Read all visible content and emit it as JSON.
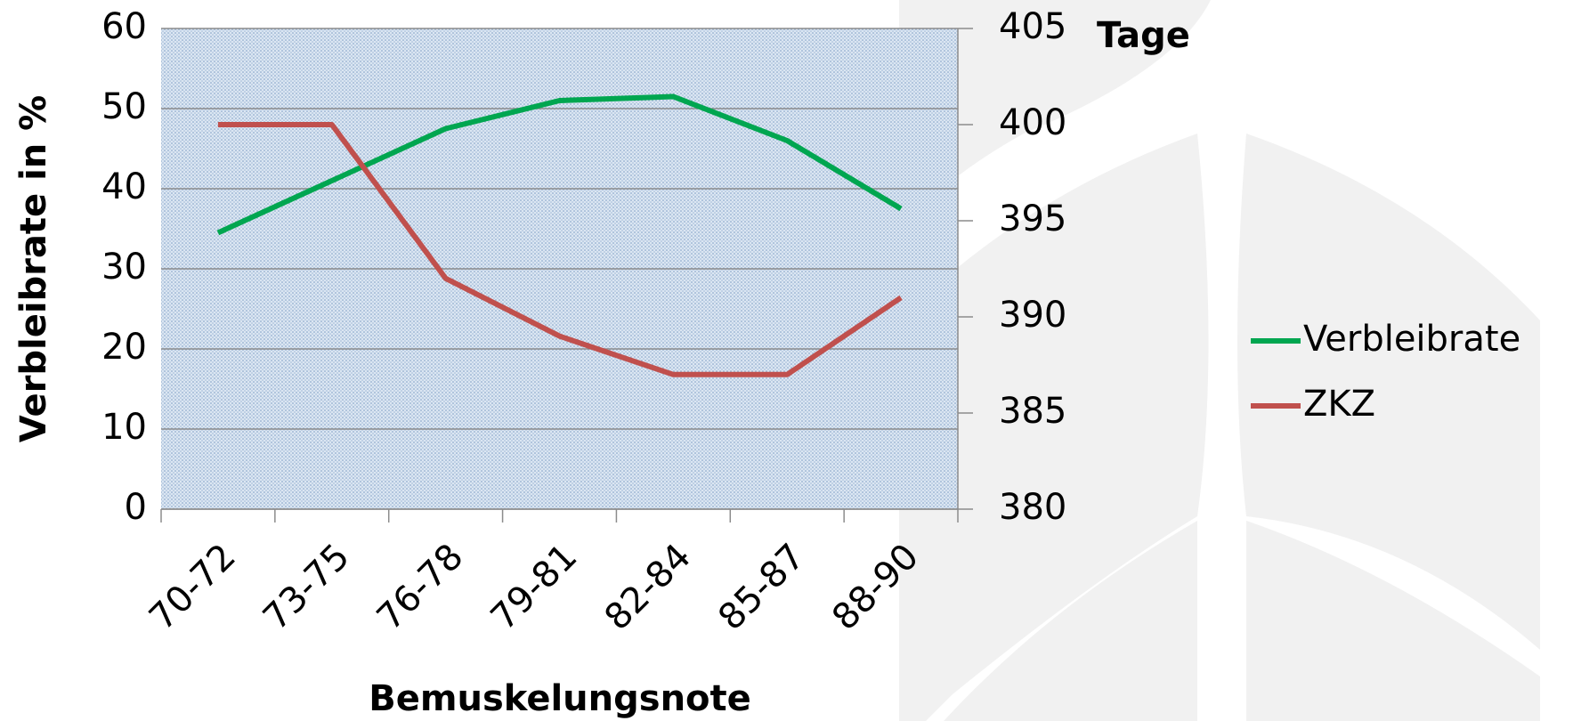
{
  "chart_data": {
    "type": "line",
    "categories": [
      "70-72",
      "73-75",
      "76-78",
      "79-81",
      "82-84",
      "85-87",
      "88-90"
    ],
    "series": [
      {
        "name": "Verbleibrate",
        "color": "#00a650",
        "values": [
          34.5,
          41,
          47.5,
          51,
          51.5,
          46,
          37.5
        ]
      },
      {
        "name": "ZKZ",
        "color": "#c0504d",
        "axis": "y2",
        "values": [
          400,
          400,
          392,
          389,
          387,
          387,
          391
        ]
      }
    ],
    "ylabel": "Verbleibrate in %",
    "xlabel": "Bemuskelungsnote",
    "y2label": "Tage",
    "ylim": [
      0,
      60
    ],
    "yticks": [
      0,
      10,
      20,
      30,
      40,
      50,
      60
    ],
    "y2lim": [
      380,
      405
    ],
    "y2ticks": [
      380,
      385,
      390,
      395,
      400,
      405
    ],
    "grid": true,
    "legend": "right"
  }
}
